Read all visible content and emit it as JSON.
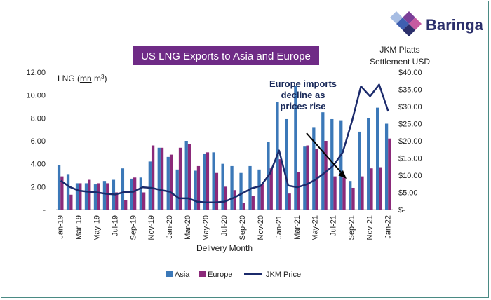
{
  "brand": {
    "name": "Baringa"
  },
  "chart_data": {
    "type": "bar",
    "title": "US LNG Exports to Asia and Europe",
    "ylabel": "LNG (mn m3)",
    "ylabel_parts": {
      "prefix": "LNG (",
      "unit": "mn",
      "space": " ",
      "m": "m",
      "sup": "3",
      "suffix": ")"
    },
    "y2label_line1": "JKM Platts",
    "y2label_line2": "Settlement USD",
    "xlabel": "Delivery Month",
    "ylim": [
      0,
      12
    ],
    "y2lim": [
      0,
      40
    ],
    "yticks": [
      "-",
      "2.00",
      "4.00",
      "6.00",
      "8.00",
      "10.00",
      "12.00"
    ],
    "y2ticks": [
      "$-",
      "$5.00",
      "$10.00",
      "$15.00",
      "$20.00",
      "$25.00",
      "$30.00",
      "$35.00",
      "$40.00"
    ],
    "categories": [
      "Jan-19",
      "Feb-19",
      "Mar-19",
      "Apr-19",
      "May-19",
      "Jun-19",
      "Jul-19",
      "Aug-19",
      "Sep-19",
      "Oct-19",
      "Nov-19",
      "Dec-19",
      "Jan-20",
      "Feb-20",
      "Mar-20",
      "Apr-20",
      "May-20",
      "Jun-20",
      "Jul-20",
      "Aug-20",
      "Sep-20",
      "Oct-20",
      "Nov-20",
      "Dec-20",
      "Jan-21",
      "Feb-21",
      "Mar-21",
      "Apr-21",
      "May-21",
      "Jun-21",
      "Jul-21",
      "Aug-21",
      "Sep-21",
      "Oct-21",
      "Nov-21",
      "Dec-21",
      "Jan-22"
    ],
    "xtick_labels": [
      "Jan-19",
      "Mar-19",
      "May-19",
      "Jul-19",
      "Sep-19",
      "Nov-19",
      "Jan-20",
      "Mar-20",
      "May-20",
      "Jul-20",
      "Sep-20",
      "Nov-20",
      "Jan-21",
      "Mar-21",
      "May-21",
      "Jul-21",
      "Sep-21",
      "Nov-21",
      "Jan-22"
    ],
    "series": [
      {
        "name": "Asia",
        "color": "#3b78b8",
        "values": [
          3.9,
          3.1,
          2.3,
          2.3,
          2.2,
          2.5,
          2.6,
          3.6,
          2.7,
          2.8,
          4.2,
          5.4,
          4.6,
          3.5,
          6.0,
          3.4,
          4.9,
          5.0,
          4.0,
          3.8,
          3.2,
          3.8,
          3.5,
          5.9,
          9.4,
          7.9,
          10.8,
          5.5,
          7.2,
          8.5,
          7.9,
          7.8,
          2.5,
          6.8,
          8.0,
          8.9,
          7.5
        ]
      },
      {
        "name": "Europe",
        "color": "#8b2a7a",
        "values": [
          2.9,
          1.3,
          2.3,
          2.6,
          2.3,
          2.3,
          1.5,
          0.8,
          2.8,
          1.5,
          5.6,
          5.4,
          4.8,
          5.4,
          5.7,
          3.8,
          5.0,
          3.2,
          2.0,
          1.7,
          0.6,
          1.2,
          2.2,
          3.6,
          4.4,
          1.4,
          3.3,
          5.6,
          5.3,
          6.0,
          2.9,
          2.8,
          1.9,
          2.9,
          3.6,
          3.7,
          6.2
        ]
      }
    ],
    "line_series": {
      "name": "JKM Price",
      "axis": "right",
      "color": "#1b2a6b",
      "values": [
        8.4,
        6.6,
        5.5,
        5.2,
        5.0,
        4.6,
        4.4,
        5.1,
        5.2,
        6.5,
        6.3,
        5.7,
        5.2,
        3.3,
        3.3,
        2.3,
        2.1,
        2.1,
        2.3,
        3.4,
        4.8,
        6.2,
        6.9,
        10.5,
        17.2,
        7.0,
        6.5,
        7.3,
        8.7,
        10.7,
        12.9,
        16.7,
        25.6,
        35.9,
        33.0,
        36.4,
        28.6
      ]
    },
    "legend": {
      "placement": "bottom",
      "entries": [
        "Asia",
        "Europe",
        "JKM Price"
      ]
    },
    "annotation": {
      "line1": "Europe imports",
      "line2": "decline as",
      "line3": "prices rise"
    },
    "grid": false
  }
}
